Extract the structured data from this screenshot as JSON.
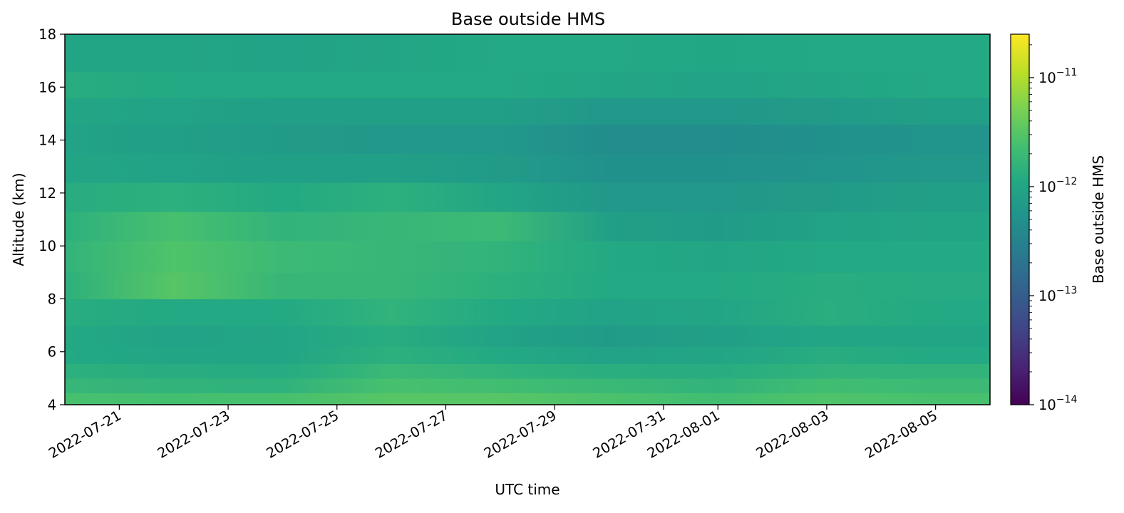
{
  "chart_data": {
    "type": "heatmap",
    "title": "Base outside HMS",
    "xlabel": "UTC time",
    "ylabel": "Altitude (km)",
    "colorbar_label": "Base outside HMS",
    "colormap": "viridis",
    "color_scale": "log",
    "color_range": [
      1e-14,
      2.5e-11
    ],
    "xlim": [
      "2022-07-20",
      "2022-08-06"
    ],
    "ylim": [
      4,
      18
    ],
    "x_ticks": [
      "2022-07-21",
      "2022-07-23",
      "2022-07-25",
      "2022-07-27",
      "2022-07-29",
      "2022-07-31",
      "2022-08-01",
      "2022-08-03",
      "2022-08-05"
    ],
    "y_ticks": [
      4,
      6,
      8,
      10,
      12,
      14,
      16,
      18
    ],
    "colorbar_ticks": [
      {
        "value": 1e-14,
        "base": "10",
        "exp": "−14"
      },
      {
        "value": 1e-13,
        "base": "10",
        "exp": "−13"
      },
      {
        "value": 1e-12,
        "base": "10",
        "exp": "−12"
      },
      {
        "value": 1e-11,
        "base": "10",
        "exp": "−11"
      }
    ],
    "altitude_bands_km": [
      4.0,
      4.45,
      5.0,
      5.55,
      6.2,
      7.0,
      8.0,
      9.0,
      10.2,
      11.3,
      12.4,
      13.5,
      14.6,
      15.6,
      16.6,
      18.0
    ],
    "time_columns": [
      "2022-07-20",
      "2022-07-22",
      "2022-07-24",
      "2022-07-26",
      "2022-07-28",
      "2022-07-30",
      "2022-08-01",
      "2022-08-03",
      "2022-08-05"
    ],
    "log10_values": [
      [
        -11.6,
        -11.62,
        -11.6,
        -11.5,
        -11.5,
        -11.58,
        -11.65,
        -11.55,
        -11.6
      ],
      [
        -11.75,
        -11.8,
        -11.82,
        -11.6,
        -11.65,
        -11.72,
        -11.8,
        -11.65,
        -11.7
      ],
      [
        -11.85,
        -11.9,
        -11.92,
        -11.72,
        -11.8,
        -11.88,
        -11.9,
        -11.8,
        -11.8
      ],
      [
        -11.95,
        -12.0,
        -12.0,
        -11.85,
        -11.95,
        -12.05,
        -12.0,
        -11.9,
        -11.95
      ],
      [
        -11.95,
        -12.05,
        -12.0,
        -11.9,
        -12.05,
        -12.15,
        -12.1,
        -12.0,
        -12.0
      ],
      [
        -11.9,
        -11.95,
        -11.95,
        -11.8,
        -11.95,
        -12.05,
        -12.0,
        -11.88,
        -11.95
      ],
      [
        -11.85,
        -11.5,
        -11.75,
        -11.75,
        -11.85,
        -11.95,
        -11.95,
        -11.9,
        -11.92
      ],
      [
        -11.8,
        -11.55,
        -11.7,
        -11.75,
        -11.8,
        -11.95,
        -12.0,
        -11.95,
        -11.95
      ],
      [
        -11.85,
        -11.6,
        -11.8,
        -11.75,
        -11.7,
        -12.1,
        -12.15,
        -12.05,
        -12.0
      ],
      [
        -11.9,
        -11.85,
        -11.95,
        -11.85,
        -12.0,
        -12.2,
        -12.2,
        -12.15,
        -12.1
      ],
      [
        -12.0,
        -12.05,
        -12.1,
        -12.1,
        -12.15,
        -12.3,
        -12.3,
        -12.25,
        -12.2
      ],
      [
        -12.05,
        -12.1,
        -12.15,
        -12.2,
        -12.2,
        -12.35,
        -12.35,
        -12.3,
        -12.25
      ],
      [
        -12.0,
        -12.05,
        -12.1,
        -12.1,
        -12.1,
        -12.2,
        -12.2,
        -12.15,
        -12.1
      ],
      [
        -11.9,
        -11.95,
        -11.95,
        -11.95,
        -11.95,
        -12.0,
        -12.05,
        -12.0,
        -11.95
      ],
      [
        -12.0,
        -12.0,
        -12.05,
        -12.0,
        -11.95,
        -11.95,
        -11.98,
        -11.95,
        -11.95
      ]
    ]
  }
}
